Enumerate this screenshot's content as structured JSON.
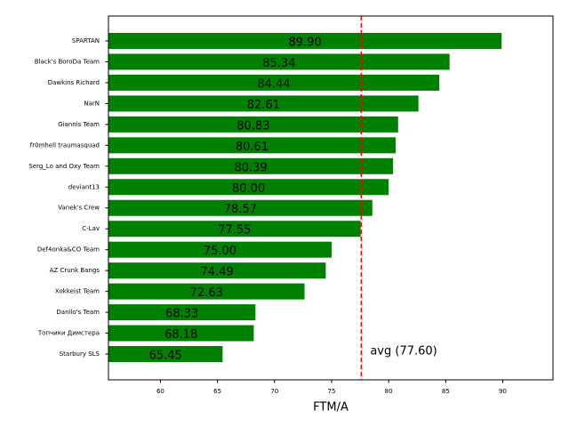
{
  "chart_data": {
    "type": "barh",
    "categories": [
      "SPARTAN",
      "Black's BoroDa Team",
      "Dawkins Richard",
      "NarN",
      "Giannis Team",
      "fr0mhell traumasquad",
      "Serg_Lo and Oxy Team",
      "deviant13",
      "Vanek's Crew",
      "C-Lav",
      "Def4onka&CO Team",
      "AZ Crunk Bangs",
      "Xokkeist Team",
      "Danilo's Team",
      "Топчики Димстера",
      "Starbury SLS"
    ],
    "values": [
      89.9,
      85.34,
      84.44,
      82.61,
      80.83,
      80.61,
      80.39,
      80.0,
      78.57,
      77.55,
      75.0,
      74.49,
      72.63,
      68.33,
      68.18,
      65.45
    ],
    "value_labels": [
      "89.90",
      "85.34",
      "84.44",
      "82.61",
      "80.83",
      "80.61",
      "80.39",
      "80.00",
      "78.57",
      "77.55",
      "75.00",
      "74.49",
      "72.63",
      "68.33",
      "68.18",
      "65.45"
    ],
    "color": "#008000",
    "xlim": [
      55.45,
      94.4
    ],
    "xticks": [
      60,
      65,
      70,
      75,
      80,
      85,
      90
    ],
    "xlabel": "FTM/A",
    "avg_line": {
      "value": 77.6,
      "label": "avg (77.60)",
      "color": "#ff0000"
    }
  }
}
